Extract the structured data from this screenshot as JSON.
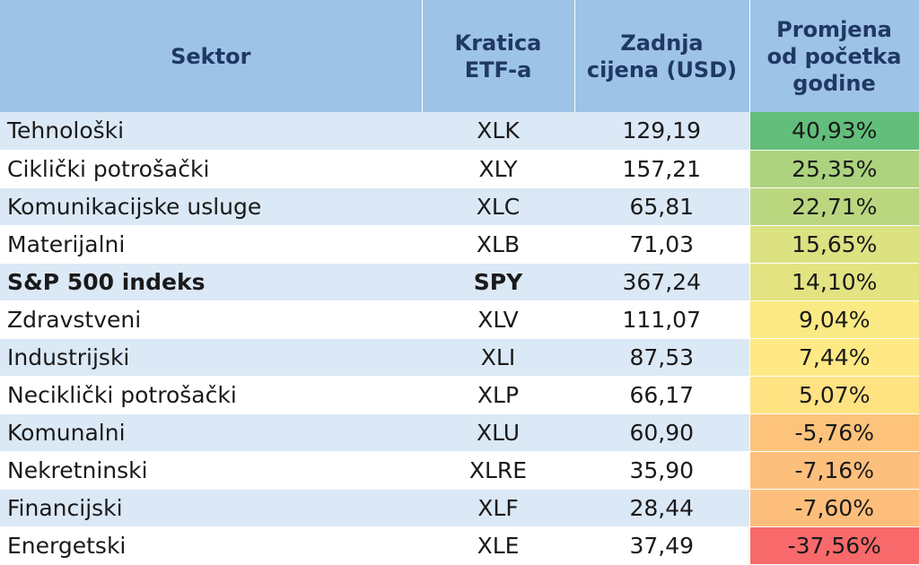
{
  "chart_data": {
    "type": "table",
    "columns": [
      [
        "Sektor"
      ],
      [
        "Kratica",
        "ETF-a"
      ],
      [
        "Zadnja",
        "cijena (USD)"
      ],
      [
        "Promjena",
        "od početka",
        "godine"
      ]
    ],
    "rows": [
      {
        "sector": "Tehnološki",
        "ticker": "XLK",
        "price": "129,19",
        "change": "40,93%",
        "value": 40.93,
        "bold": false
      },
      {
        "sector": "Ciklički potrošački",
        "ticker": "XLY",
        "price": "157,21",
        "change": "25,35%",
        "value": 25.35,
        "bold": false
      },
      {
        "sector": "Komunikacijske usluge",
        "ticker": "XLC",
        "price": "65,81",
        "change": "22,71%",
        "value": 22.71,
        "bold": false
      },
      {
        "sector": "Materijalni",
        "ticker": "XLB",
        "price": "71,03",
        "change": "15,65%",
        "value": 15.65,
        "bold": false
      },
      {
        "sector": "S&P 500 indeks",
        "ticker": "SPY",
        "price": "367,24",
        "change": "14,10%",
        "value": 14.1,
        "bold": true
      },
      {
        "sector": "Zdravstveni",
        "ticker": "XLV",
        "price": "111,07",
        "change": "9,04%",
        "value": 9.04,
        "bold": false
      },
      {
        "sector": "Industrijski",
        "ticker": "XLI",
        "price": "87,53",
        "change": "7,44%",
        "value": 7.44,
        "bold": false
      },
      {
        "sector": "Neciklički potrošački",
        "ticker": "XLP",
        "price": "66,17",
        "change": "5,07%",
        "value": 5.07,
        "bold": false
      },
      {
        "sector": "Komunalni",
        "ticker": "XLU",
        "price": "60,90",
        "change": "-5,76%",
        "value": -5.76,
        "bold": false
      },
      {
        "sector": "Nekretninski",
        "ticker": "XLRE",
        "price": "35,90",
        "change": "-7,16%",
        "value": -7.16,
        "bold": false
      },
      {
        "sector": "Financijski",
        "ticker": "XLF",
        "price": "28,44",
        "change": "-7,60%",
        "value": -7.6,
        "bold": false
      },
      {
        "sector": "Energetski",
        "ticker": "XLE",
        "price": "37,49",
        "change": "-37,56%",
        "value": -37.56,
        "bold": false
      }
    ],
    "color_scale": {
      "high": "#63be7b",
      "mid": "#ffeb84",
      "low": "#f8696b"
    }
  }
}
